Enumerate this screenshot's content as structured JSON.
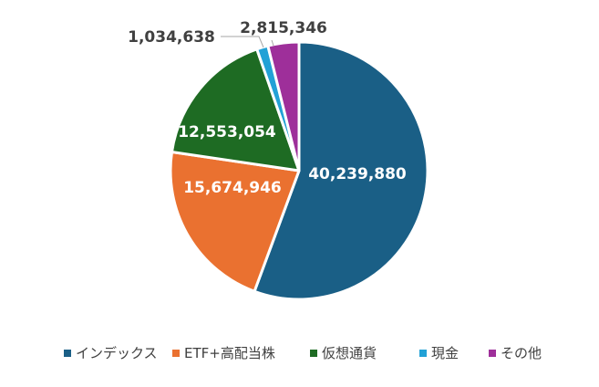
{
  "chart_data": {
    "type": "pie",
    "title": "",
    "legend_position": "bottom",
    "slices": [
      {
        "name": "インデックス",
        "value": 40239880,
        "label": "40,239,880",
        "color": "#1a5f86"
      },
      {
        "name": "ETF+高配当株",
        "value": 15674946,
        "label": "15,674,946",
        "color": "#ea7130"
      },
      {
        "name": "仮想通貨",
        "value": 12553054,
        "label": "12,553,054",
        "color": "#1e6b23"
      },
      {
        "name": "現金",
        "value": 1034638,
        "label": "1,034,638",
        "color": "#22a1d6"
      },
      {
        "name": "その他",
        "value": 2815346,
        "label": "2,815,346",
        "color": "#9e2f9a"
      }
    ]
  }
}
